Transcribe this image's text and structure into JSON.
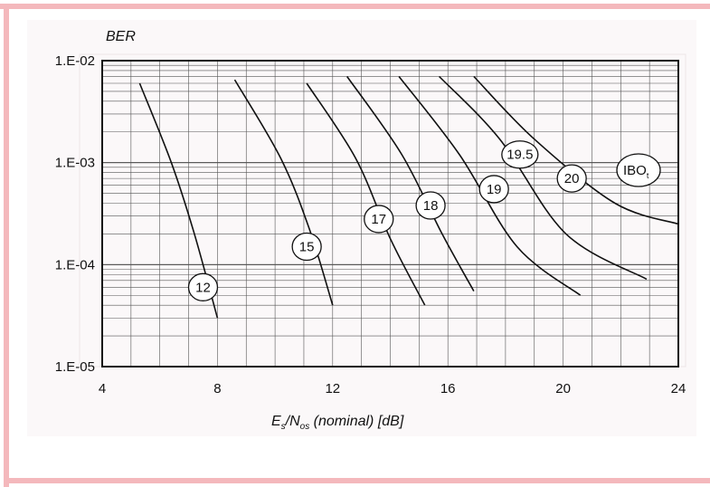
{
  "chart_data": {
    "type": "line",
    "ylabel": "BER",
    "xlabel_main": "E",
    "xlabel_sub1": "s",
    "xlabel_mid": "/N",
    "xlabel_sub2": "os",
    "xlabel_rest": " (nominal) [dB]",
    "xlim": [
      4,
      24
    ],
    "ylim": [
      "1.E-05",
      "1.E-02"
    ],
    "y_scale": "log",
    "x_ticks": [
      "4",
      "8",
      "12",
      "16",
      "20",
      "24"
    ],
    "y_ticks": [
      "1.E-02",
      "1.E-03",
      "1.E-04",
      "1.E-05"
    ],
    "legend_label": "IBO",
    "legend_sub": "t",
    "grid": true,
    "series": [
      {
        "name": "12",
        "points": [
          [
            5.3,
            0.006
          ],
          [
            6.4,
            0.001
          ],
          [
            7.2,
            0.0002
          ],
          [
            8.0,
            3e-05
          ]
        ]
      },
      {
        "name": "15",
        "points": [
          [
            8.6,
            0.0065
          ],
          [
            10.2,
            0.0011
          ],
          [
            11.2,
            0.00022
          ],
          [
            12.0,
            4e-05
          ]
        ]
      },
      {
        "name": "17",
        "points": [
          [
            11.1,
            0.006
          ],
          [
            12.8,
            0.0011
          ],
          [
            14.0,
            0.00018
          ],
          [
            15.2,
            4e-05
          ]
        ]
      },
      {
        "name": "18",
        "points": [
          [
            12.5,
            0.007
          ],
          [
            14.4,
            0.0012
          ],
          [
            15.8,
            0.0002
          ],
          [
            16.9,
            5.5e-05
          ]
        ]
      },
      {
        "name": "19",
        "points": [
          [
            14.3,
            0.007
          ],
          [
            16.4,
            0.0012
          ],
          [
            18.4,
            0.00015
          ],
          [
            20.6,
            5e-05
          ]
        ]
      },
      {
        "name": "19.5",
        "points": [
          [
            15.7,
            0.007
          ],
          [
            17.8,
            0.0017
          ],
          [
            20.1,
            0.0002
          ],
          [
            22.9,
            7.2e-05
          ]
        ]
      },
      {
        "name": "20",
        "points": [
          [
            16.9,
            0.007
          ],
          [
            19.0,
            0.0017
          ],
          [
            21.8,
            0.0004
          ],
          [
            24.0,
            0.00025
          ]
        ]
      }
    ],
    "curve_label_pos": [
      {
        "label": "12",
        "x": 7.5,
        "y": 6e-05
      },
      {
        "label": "15",
        "x": 11.1,
        "y": 0.00015
      },
      {
        "label": "17",
        "x": 13.6,
        "y": 0.00028
      },
      {
        "label": "18",
        "x": 15.4,
        "y": 0.00038
      },
      {
        "label": "19",
        "x": 17.6,
        "y": 0.00055
      },
      {
        "label": "19.5",
        "x": 18.5,
        "y": 0.0012
      },
      {
        "label": "20",
        "x": 20.3,
        "y": 0.0007
      }
    ]
  }
}
